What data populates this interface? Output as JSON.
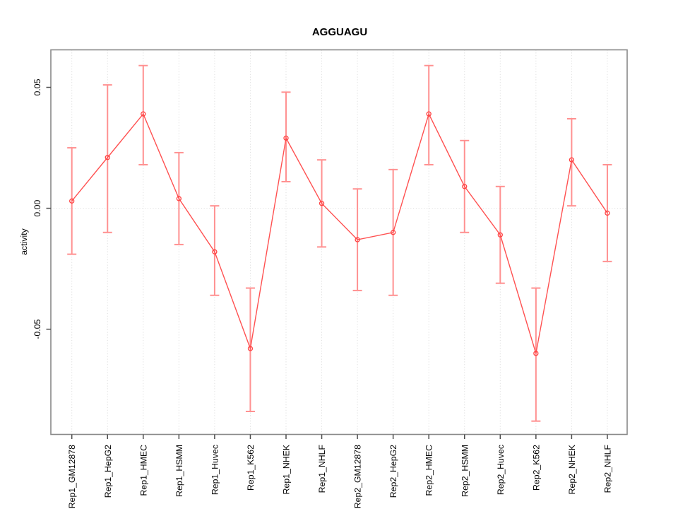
{
  "figure": {
    "background": "#ffffff"
  },
  "chart_data": {
    "type": "line",
    "title": "AGGUAGU",
    "xlabel": "",
    "ylabel": "activity",
    "legend": "none",
    "marker": "open-circle",
    "error_bars": true,
    "categories": [
      "Rep1_GM12878",
      "Rep1_HepG2",
      "Rep1_HMEC",
      "Rep1_HSMM",
      "Rep1_Huvec",
      "Rep1_K562",
      "Rep1_NHEK",
      "Rep1_NHLF",
      "Rep2_GM12878",
      "Rep2_HepG2",
      "Rep2_HMEC",
      "Rep2_HSMM",
      "Rep2_Huvec",
      "Rep2_K562",
      "Rep2_NHEK",
      "Rep2_NHLF"
    ],
    "series": [
      {
        "name": "activity",
        "values": [
          0.003,
          0.021,
          0.039,
          0.004,
          -0.018,
          -0.058,
          0.029,
          0.002,
          -0.013,
          -0.01,
          0.039,
          0.009,
          -0.011,
          -0.06,
          0.02,
          -0.002
        ],
        "ci_low": [
          -0.019,
          -0.01,
          0.018,
          -0.015,
          -0.036,
          -0.084,
          0.011,
          -0.016,
          -0.034,
          -0.036,
          0.018,
          -0.01,
          -0.031,
          -0.088,
          0.001,
          -0.022
        ],
        "ci_high": [
          0.025,
          0.051,
          0.059,
          0.023,
          0.001,
          -0.033,
          0.048,
          0.02,
          0.008,
          0.016,
          0.059,
          0.028,
          0.009,
          -0.033,
          0.037,
          0.018
        ]
      }
    ],
    "yticks": [
      {
        "value": 0.05,
        "label": "0.05"
      },
      {
        "value": 0.0,
        "label": "0.00"
      },
      {
        "value": -0.05,
        "label": "-0.05"
      }
    ],
    "ylim": [
      -0.0935,
      0.0655
    ],
    "grid": {
      "vertical": "dotted line at every category",
      "horizontal": "dotted line at zero only",
      "style": "dotted"
    },
    "colors": {
      "line": "#ff5151",
      "error_bar": "#ff9191",
      "marker": "#ff4242",
      "grid": "#dedede",
      "box": "#898989",
      "tick": "#4d4d4d",
      "text": "#000000"
    }
  }
}
